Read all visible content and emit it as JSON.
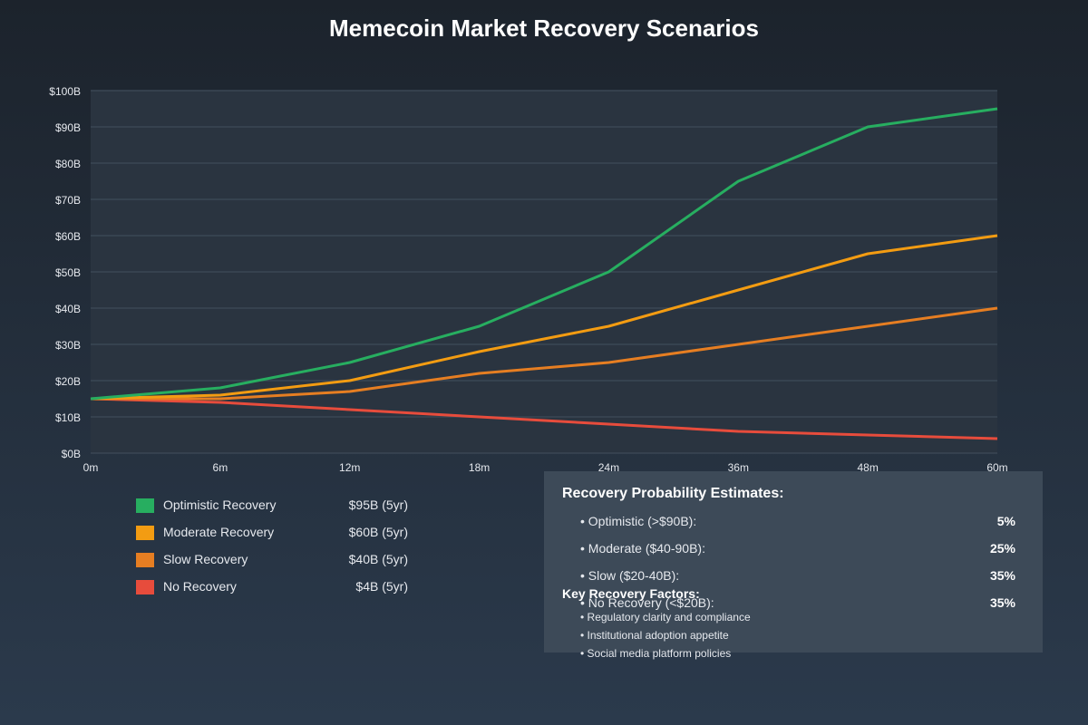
{
  "chart_data": {
    "type": "line",
    "title": "Memecoin Market Recovery Scenarios",
    "xlabel": "",
    "ylabel": "",
    "categories": [
      "0m",
      "6m",
      "12m",
      "18m",
      "24m",
      "36m",
      "48m",
      "60m"
    ],
    "y_ticks": [
      "$0B",
      "$10B",
      "$20B",
      "$30B",
      "$40B",
      "$50B",
      "$60B",
      "$70B",
      "$80B",
      "$90B",
      "$100B"
    ],
    "ylim": [
      0,
      100
    ],
    "grid": true,
    "series": [
      {
        "name": "Optimistic Recovery",
        "color": "#27ae60",
        "values": [
          15,
          18,
          25,
          35,
          50,
          75,
          90,
          95
        ]
      },
      {
        "name": "Moderate Recovery",
        "color": "#f39c12",
        "values": [
          15,
          16,
          20,
          28,
          35,
          45,
          55,
          60
        ]
      },
      {
        "name": "Slow Recovery",
        "color": "#e67e22",
        "values": [
          15,
          15,
          17,
          22,
          25,
          30,
          35,
          40
        ]
      },
      {
        "name": "No Recovery",
        "color": "#e74c3c",
        "values": [
          15,
          14,
          12,
          10,
          8,
          6,
          5,
          4
        ]
      }
    ]
  },
  "legend": [
    {
      "label": "Optimistic Recovery",
      "value": "$95B (5yr)",
      "color": "#27ae60"
    },
    {
      "label": "Moderate Recovery",
      "value": "$60B (5yr)",
      "color": "#f39c12"
    },
    {
      "label": "Slow Recovery",
      "value": "$40B (5yr)",
      "color": "#e67e22"
    },
    {
      "label": "No Recovery",
      "value": "$4B (5yr)",
      "color": "#e74c3c"
    }
  ],
  "probability_panel": {
    "title": "Recovery Probability Estimates:",
    "items": [
      {
        "label": "• Optimistic (>$90B):",
        "value": "5%"
      },
      {
        "label": "• Moderate ($40-90B):",
        "value": "25%"
      },
      {
        "label": "• Slow ($20-40B):",
        "value": "35%"
      },
      {
        "label": "• No Recovery (<$20B):",
        "value": "35%"
      }
    ],
    "factors_title": "Key Recovery Factors:",
    "factors": [
      "• Regulatory clarity and compliance",
      "• Institutional adoption appetite",
      "• Social media platform policies"
    ]
  }
}
